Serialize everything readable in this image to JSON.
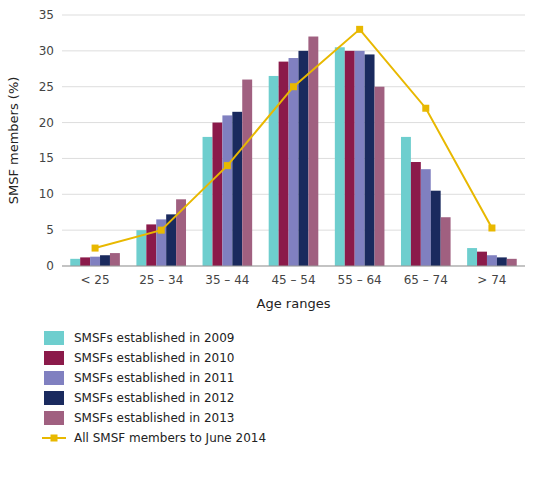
{
  "chart_data": {
    "type": "bar",
    "xlabel": "Age ranges",
    "ylabel": "SMSF members (%)",
    "categories": [
      "< 25",
      "25 – 34",
      "35 – 44",
      "45 – 54",
      "55 – 64",
      "65 – 74",
      "> 74"
    ],
    "series": [
      {
        "name": "SMSFs established in 2009",
        "color": "#6ecece",
        "values": [
          1.0,
          5.0,
          18.0,
          26.5,
          30.5,
          18.0,
          2.5
        ]
      },
      {
        "name": "SMSFs established in 2010",
        "color": "#8b1a4a",
        "values": [
          1.2,
          5.8,
          20.0,
          28.5,
          30.0,
          14.5,
          2.0
        ]
      },
      {
        "name": "SMSFs established in 2011",
        "color": "#8080c0",
        "values": [
          1.3,
          6.5,
          21.0,
          29.0,
          30.0,
          13.5,
          1.5
        ]
      },
      {
        "name": "SMSFs established in 2012",
        "color": "#1a2a5e",
        "values": [
          1.5,
          7.2,
          21.5,
          30.0,
          29.5,
          10.5,
          1.2
        ]
      },
      {
        "name": "SMSFs established in 2013",
        "color": "#a06080",
        "values": [
          1.8,
          9.3,
          26.0,
          32.0,
          25.0,
          6.8,
          1.0
        ]
      },
      {
        "name": "All SMSF members to June 2014",
        "type": "line",
        "color": "#e8b800",
        "marker": "square",
        "values": [
          2.5,
          5.0,
          14.0,
          25.0,
          33.0,
          22.0,
          5.3
        ]
      }
    ],
    "ylim": [
      0,
      35
    ],
    "yticks": [
      0,
      5,
      10,
      15,
      20,
      25,
      30,
      35
    ],
    "grid": true,
    "legend": "bottom"
  }
}
